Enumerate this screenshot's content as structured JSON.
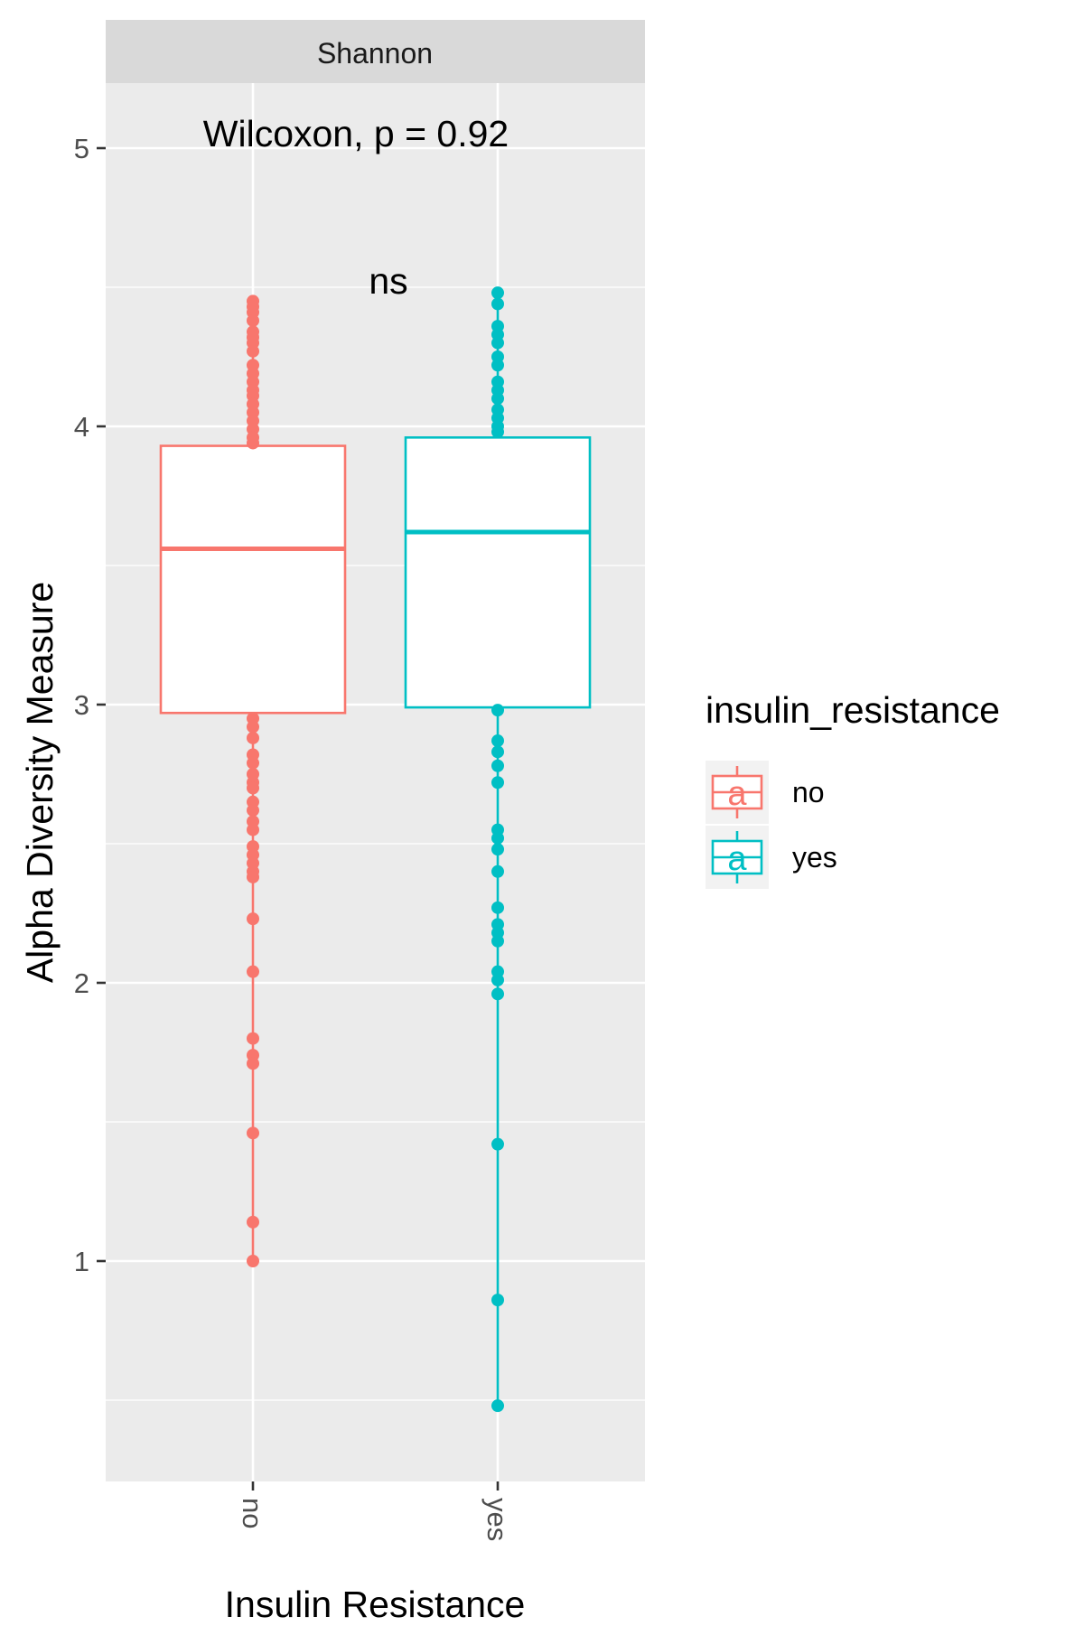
{
  "chart_data": {
    "type": "box",
    "facet_label": "Shannon",
    "annotation": "Wilcoxon, p = 0.92",
    "significance_label": "ns",
    "xlabel": "Insulin Resistance",
    "ylabel": "Alpha Diversity Measure",
    "ylim": [
      0.3,
      5.25
    ],
    "y_ticks": [
      1,
      2,
      3,
      4,
      5
    ],
    "y_tick_labels": [
      "1",
      "2",
      "3",
      "4",
      "5"
    ],
    "categories": [
      "no",
      "yes"
    ],
    "grid": true,
    "legend": {
      "title": "insulin_resistance",
      "placement": "right",
      "entries": [
        {
          "label": "no",
          "color": "#F8766D",
          "key_glyph": "a"
        },
        {
          "label": "yes",
          "color": "#00BFC4",
          "key_glyph": "a"
        }
      ]
    },
    "series": [
      {
        "category": "no",
        "color": "#F8766D",
        "q1": 2.97,
        "median": 3.56,
        "q3": 3.93,
        "whisker_low": 1.0,
        "whisker_high": 4.45,
        "points": [
          4.45,
          4.43,
          4.41,
          4.38,
          4.34,
          4.32,
          4.3,
          4.27,
          4.22,
          4.19,
          4.16,
          4.13,
          4.11,
          4.08,
          4.05,
          4.02,
          3.99,
          3.96,
          3.94,
          2.95,
          2.92,
          2.88,
          2.82,
          2.79,
          2.75,
          2.72,
          2.7,
          2.65,
          2.62,
          2.58,
          2.55,
          2.49,
          2.46,
          2.43,
          2.4,
          2.38,
          2.23,
          2.04,
          1.8,
          1.74,
          1.71,
          1.46,
          1.14,
          1.0
        ]
      },
      {
        "category": "yes",
        "color": "#00BFC4",
        "q1": 2.99,
        "median": 3.62,
        "q3": 3.96,
        "whisker_low": 0.48,
        "whisker_high": 4.48,
        "points": [
          4.48,
          4.44,
          4.36,
          4.33,
          4.3,
          4.25,
          4.22,
          4.16,
          4.13,
          4.1,
          4.06,
          4.03,
          4.0,
          3.98,
          2.98,
          2.87,
          2.83,
          2.78,
          2.72,
          2.55,
          2.52,
          2.48,
          2.4,
          2.27,
          2.21,
          2.18,
          2.15,
          2.04,
          2.01,
          1.96,
          1.42,
          0.86,
          0.48
        ]
      }
    ]
  }
}
